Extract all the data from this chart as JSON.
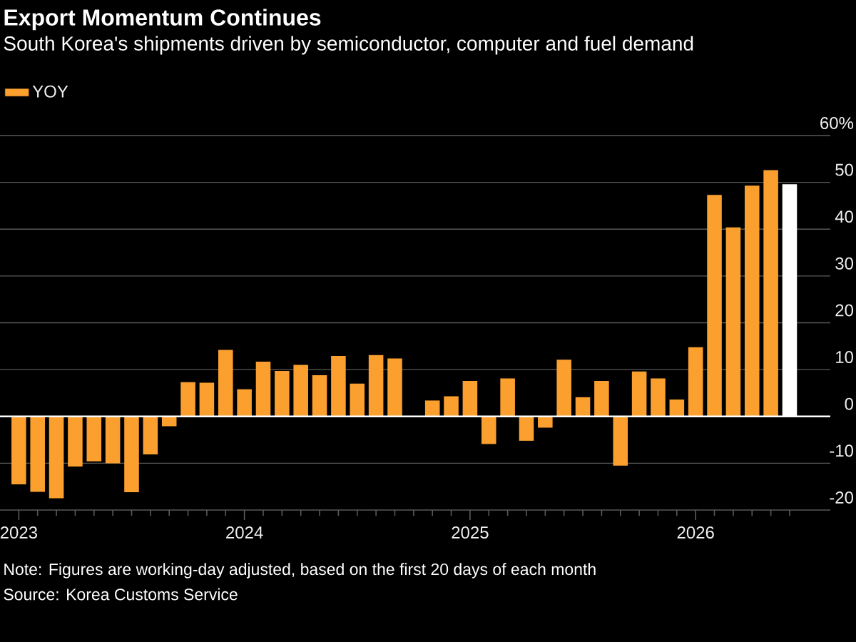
{
  "chart_data": {
    "type": "bar",
    "title": "Export Momentum Continues",
    "subtitle": "South Korea's shipments driven by semiconductor, computer and fuel demand",
    "x": [
      "2023-01",
      "2023-02",
      "2023-03",
      "2023-04",
      "2023-05",
      "2023-06",
      "2023-07",
      "2023-08",
      "2023-09",
      "2023-10",
      "2023-11",
      "2023-12",
      "2024-01",
      "2024-02",
      "2024-03",
      "2024-04",
      "2024-05",
      "2024-06",
      "2024-07",
      "2024-08",
      "2024-09",
      "2024-10",
      "2024-11",
      "2024-12",
      "2025-01",
      "2025-02",
      "2025-03",
      "2025-04",
      "2025-05",
      "2025-06",
      "2025-07",
      "2025-08",
      "2025-09",
      "2025-10",
      "2025-11",
      "2025-12",
      "2026-01",
      "2026-02",
      "2026-03",
      "2026-04",
      "2026-05",
      "2026-06"
    ],
    "series": [
      {
        "name": "YOY",
        "color": "#fba02f",
        "values": [
          -14.5,
          -16.1,
          -17.5,
          -10.7,
          -9.6,
          -10.0,
          -16.2,
          -8.1,
          -2.1,
          7.3,
          7.2,
          14.2,
          5.8,
          11.7,
          9.7,
          11.0,
          8.8,
          12.9,
          7.0,
          13.1,
          12.4,
          0.0,
          3.4,
          4.3,
          7.6,
          -5.9,
          8.1,
          -5.2,
          -2.4,
          12.1,
          4.1,
          7.6,
          -10.5,
          9.6,
          8.1,
          3.6,
          14.8,
          47.3,
          40.4,
          49.3,
          52.6,
          49.6
        ],
        "colors": [
          "#fba02f",
          "#fba02f",
          "#fba02f",
          "#fba02f",
          "#fba02f",
          "#fba02f",
          "#fba02f",
          "#fba02f",
          "#fba02f",
          "#fba02f",
          "#fba02f",
          "#fba02f",
          "#fba02f",
          "#fba02f",
          "#fba02f",
          "#fba02f",
          "#fba02f",
          "#fba02f",
          "#fba02f",
          "#fba02f",
          "#fba02f",
          "#fba02f",
          "#fba02f",
          "#fba02f",
          "#fba02f",
          "#fba02f",
          "#fba02f",
          "#fba02f",
          "#fba02f",
          "#fba02f",
          "#fba02f",
          "#fba02f",
          "#fba02f",
          "#fba02f",
          "#fba02f",
          "#fba02f",
          "#fba02f",
          "#fba02f",
          "#fba02f",
          "#fba02f",
          "#fba02f",
          "#ffffff"
        ]
      }
    ],
    "xlim": [
      "2022-12",
      "2026-08-06"
    ],
    "xticks": [
      "2023",
      {
        "value": "2023-02",
        "label": null
      },
      {
        "value": "2023-03",
        "label": null
      },
      {
        "value": "2023-04",
        "label": null
      },
      {
        "value": "2023-05",
        "label": null
      },
      {
        "value": "2023-06",
        "label": null
      },
      {
        "value": "2023-07",
        "label": null
      },
      {
        "value": "2023-08",
        "label": null
      },
      {
        "value": "2023-09",
        "label": null
      },
      {
        "value": "2023-10",
        "label": null
      },
      {
        "value": "2023-11",
        "label": null
      },
      {
        "value": "2023-12",
        "label": null
      },
      "2024",
      {
        "value": "2024-02",
        "label": null
      },
      {
        "value": "2024-03",
        "label": null
      },
      {
        "value": "2024-04",
        "label": null
      },
      {
        "value": "2024-05",
        "label": null
      },
      {
        "value": "2024-06",
        "label": null
      },
      {
        "value": "2024-07",
        "label": null
      },
      {
        "value": "2024-08",
        "label": null
      },
      {
        "value": "2024-09",
        "label": null
      },
      {
        "value": "2024-10",
        "label": null
      },
      {
        "value": "2024-11",
        "label": null
      },
      {
        "value": "2024-12",
        "label": null
      },
      "2025",
      {
        "value": "2025-02",
        "label": null
      },
      {
        "value": "2025-03",
        "label": null
      },
      {
        "value": "2025-04",
        "label": null
      },
      {
        "value": "2025-05",
        "label": null
      },
      {
        "value": "2025-06",
        "label": null
      },
      {
        "value": "2025-07",
        "label": null
      },
      {
        "value": "2025-08",
        "label": null
      },
      {
        "value": "2025-09",
        "label": null
      },
      {
        "value": "2025-10",
        "label": null
      },
      {
        "value": "2025-11",
        "label": null
      },
      {
        "value": "2025-12",
        "label": null
      },
      "2026",
      {
        "value": "2026-02",
        "label": null
      },
      {
        "value": "2026-03",
        "label": null
      },
      {
        "value": "2026-04",
        "label": null
      },
      {
        "value": "2026-05",
        "label": null
      },
      {
        "value": "2026-06",
        "label": null
      }
    ],
    "ylim": [
      -20,
      60
    ],
    "yticks": [
      {
        "value": 60,
        "label": "60%"
      },
      50,
      40,
      30,
      20,
      10,
      0,
      -10,
      -20
    ],
    "grid": "y",
    "legend": "top left",
    "ref_lines": [
      {
        "axis": "y",
        "value": 0,
        "color": "#ffffff"
      }
    ],
    "annotations": [
      "Note: Figures are working-day adjusted, based on the first 20 days of each month",
      "Source: Korea Customs Service"
    ]
  }
}
